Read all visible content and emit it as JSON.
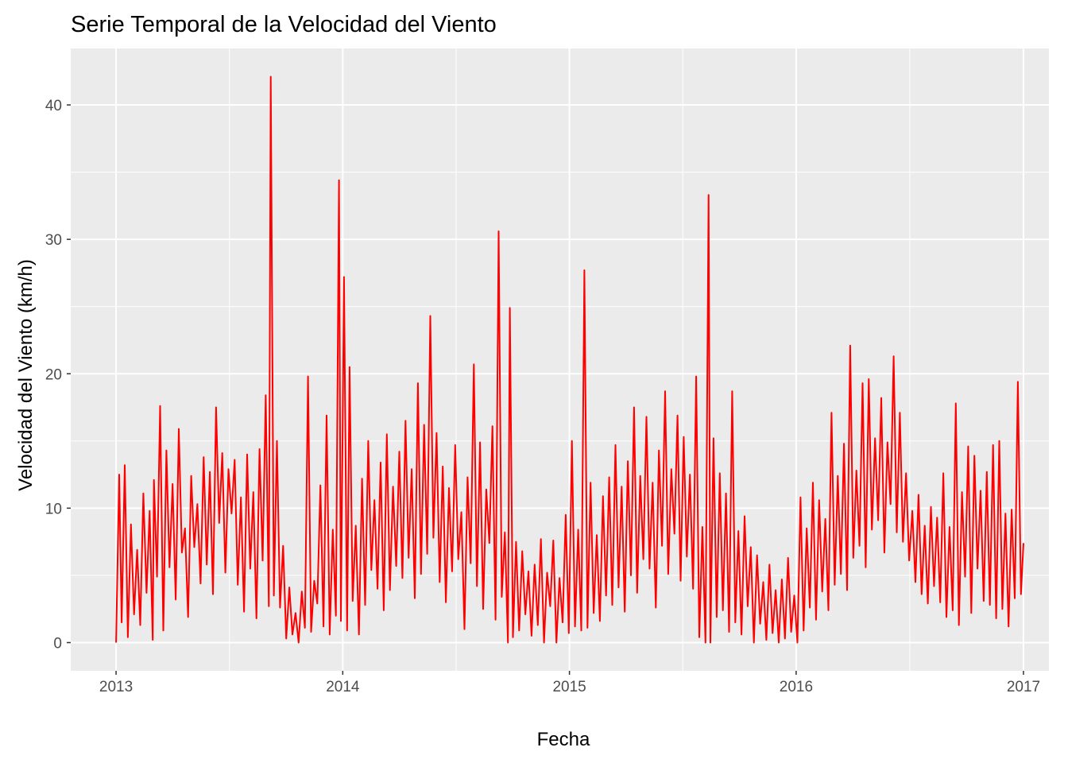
{
  "chart_data": {
    "type": "line",
    "title": "Serie Temporal de la Velocidad del Viento",
    "xlabel": "Fecha",
    "ylabel": "Velocidad del Viento (km/h)",
    "x_ticks": [
      "2013",
      "2014",
      "2015",
      "2016",
      "2017"
    ],
    "y_ticks": [
      "0",
      "10",
      "20",
      "30",
      "40"
    ],
    "xlim": [
      "2012-10-20",
      "2017-02-11"
    ],
    "ylim": [
      -2.1,
      44.2
    ],
    "grid": true,
    "legend": "none",
    "series": [
      {
        "color": "#ff0000",
        "x": [
          "2013-01-01",
          "2013-01-06",
          "2013-01-10",
          "2013-01-15",
          "2013-01-20",
          "2013-01-25",
          "2013-01-30",
          "2013-02-04",
          "2013-02-09",
          "2013-02-14",
          "2013-02-19",
          "2013-02-24",
          "2013-03-01",
          "2013-03-03",
          "2013-03-08",
          "2013-03-13",
          "2013-03-18",
          "2013-03-23",
          "2013-03-28",
          "2013-04-02",
          "2013-04-07",
          "2013-04-12",
          "2013-04-17",
          "2013-04-22",
          "2013-04-27",
          "2013-05-02",
          "2013-05-07",
          "2013-05-12",
          "2013-05-17",
          "2013-05-22",
          "2013-05-27",
          "2013-06-01",
          "2013-06-06",
          "2013-06-11",
          "2013-06-16",
          "2013-06-21",
          "2013-06-26",
          "2013-07-01",
          "2013-07-06",
          "2013-07-11",
          "2013-07-16",
          "2013-07-21",
          "2013-07-26",
          "2013-07-31",
          "2013-08-05",
          "2013-08-10",
          "2013-08-15",
          "2013-08-20",
          "2013-08-25",
          "2013-08-30",
          "2013-09-04",
          "2013-09-07",
          "2013-09-12",
          "2013-09-17",
          "2013-09-22",
          "2013-09-27",
          "2013-10-02",
          "2013-10-07",
          "2013-10-12",
          "2013-10-17",
          "2013-10-22",
          "2013-10-27",
          "2013-11-01",
          "2013-11-06",
          "2013-11-11",
          "2013-11-16",
          "2013-11-21",
          "2013-11-26",
          "2013-12-01",
          "2013-12-06",
          "2013-12-11",
          "2013-12-16",
          "2013-12-21",
          "2013-12-26",
          "2013-12-29",
          "2014-01-03",
          "2014-01-08",
          "2014-01-12",
          "2014-01-17",
          "2014-01-22",
          "2014-01-27",
          "2014-02-01",
          "2014-02-06",
          "2014-02-11",
          "2014-02-16",
          "2014-02-21",
          "2014-02-26",
          "2014-03-03",
          "2014-03-08",
          "2014-03-13",
          "2014-03-18",
          "2014-03-23",
          "2014-03-28",
          "2014-04-02",
          "2014-04-07",
          "2014-04-12",
          "2014-04-17",
          "2014-04-22",
          "2014-04-27",
          "2014-05-02",
          "2014-05-07",
          "2014-05-12",
          "2014-05-17",
          "2014-05-22",
          "2014-05-27",
          "2014-06-01",
          "2014-06-06",
          "2014-06-11",
          "2014-06-16",
          "2014-06-21",
          "2014-06-26",
          "2014-07-01",
          "2014-07-06",
          "2014-07-11",
          "2014-07-16",
          "2014-07-21",
          "2014-07-26",
          "2014-07-31",
          "2014-08-05",
          "2014-08-10",
          "2014-08-15",
          "2014-08-20",
          "2014-08-25",
          "2014-08-30",
          "2014-09-04",
          "2014-09-09",
          "2014-09-14",
          "2014-09-19",
          "2014-09-24",
          "2014-09-27",
          "2014-10-02",
          "2014-10-07",
          "2014-10-12",
          "2014-10-17",
          "2014-10-22",
          "2014-10-27",
          "2014-11-01",
          "2014-11-06",
          "2014-11-11",
          "2014-11-16",
          "2014-11-21",
          "2014-11-26",
          "2014-12-01",
          "2014-12-06",
          "2014-12-11",
          "2014-12-16",
          "2014-12-21",
          "2014-12-26",
          "2014-12-31",
          "2015-01-05",
          "2015-01-10",
          "2015-01-15",
          "2015-01-20",
          "2015-01-25",
          "2015-01-30",
          "2015-02-04",
          "2015-02-09",
          "2015-02-14",
          "2015-02-19",
          "2015-02-24",
          "2015-03-01",
          "2015-03-06",
          "2015-03-11",
          "2015-03-16",
          "2015-03-21",
          "2015-03-26",
          "2015-03-31",
          "2015-04-05",
          "2015-04-10",
          "2015-04-15",
          "2015-04-20",
          "2015-04-25",
          "2015-04-30",
          "2015-05-05",
          "2015-05-10",
          "2015-05-15",
          "2015-05-20",
          "2015-05-25",
          "2015-05-30",
          "2015-06-04",
          "2015-06-09",
          "2015-06-14",
          "2015-06-19",
          "2015-06-24",
          "2015-06-29",
          "2015-07-04",
          "2015-07-09",
          "2015-07-14",
          "2015-07-19",
          "2015-07-24",
          "2015-07-29",
          "2015-08-03",
          "2015-08-08",
          "2015-08-13",
          "2015-08-16",
          "2015-08-21",
          "2015-08-26",
          "2015-08-31",
          "2015-09-05",
          "2015-09-10",
          "2015-09-15",
          "2015-09-20",
          "2015-09-25",
          "2015-09-30",
          "2015-10-05",
          "2015-10-10",
          "2015-10-15",
          "2015-10-20",
          "2015-10-25",
          "2015-10-30",
          "2015-11-04",
          "2015-11-09",
          "2015-11-14",
          "2015-11-19",
          "2015-11-24",
          "2015-11-29",
          "2015-12-04",
          "2015-12-09",
          "2015-12-14",
          "2015-12-19",
          "2015-12-24",
          "2015-12-29",
          "2016-01-03",
          "2016-01-08",
          "2016-01-13",
          "2016-01-18",
          "2016-01-23",
          "2016-01-28",
          "2016-02-02",
          "2016-02-07",
          "2016-02-12",
          "2016-02-17",
          "2016-02-22",
          "2016-02-27",
          "2016-03-03",
          "2016-03-08",
          "2016-03-13",
          "2016-03-18",
          "2016-03-23",
          "2016-03-28",
          "2016-04-02",
          "2016-04-07",
          "2016-04-12",
          "2016-04-17",
          "2016-04-22",
          "2016-04-27",
          "2016-05-02",
          "2016-05-07",
          "2016-05-12",
          "2016-05-17",
          "2016-05-22",
          "2016-05-27",
          "2016-06-01",
          "2016-06-06",
          "2016-06-11",
          "2016-06-16",
          "2016-06-21",
          "2016-06-26",
          "2016-07-01",
          "2016-07-06",
          "2016-07-11",
          "2016-07-16",
          "2016-07-21",
          "2016-07-26",
          "2016-07-31",
          "2016-08-05",
          "2016-08-10",
          "2016-08-15",
          "2016-08-20",
          "2016-08-25",
          "2016-08-30",
          "2016-09-04",
          "2016-09-09",
          "2016-09-14",
          "2016-09-19",
          "2016-09-24",
          "2016-09-29",
          "2016-10-04",
          "2016-10-09",
          "2016-10-14",
          "2016-10-19",
          "2016-10-24",
          "2016-10-29",
          "2016-11-03",
          "2016-11-08",
          "2016-11-13",
          "2016-11-18",
          "2016-11-23",
          "2016-11-28",
          "2016-12-03",
          "2016-12-08",
          "2016-12-13",
          "2016-12-18",
          "2016-12-23",
          "2016-12-28",
          "2017-01-01"
        ],
        "y": [
          0.0,
          12.5,
          1.5,
          13.2,
          0.4,
          8.8,
          2.1,
          6.9,
          1.3,
          11.1,
          3.7,
          9.8,
          0.2,
          12.1,
          4.9,
          17.6,
          0.9,
          14.3,
          5.6,
          11.8,
          3.2,
          15.9,
          6.7,
          8.5,
          1.9,
          12.4,
          7.1,
          10.3,
          4.4,
          13.8,
          5.8,
          12.7,
          3.6,
          17.5,
          8.9,
          14.1,
          5.2,
          12.9,
          9.6,
          13.6,
          4.3,
          10.8,
          2.3,
          14.0,
          5.5,
          11.2,
          1.8,
          14.4,
          6.1,
          18.4,
          2.7,
          42.1,
          3.5,
          15.0,
          2.6,
          7.2,
          0.3,
          4.1,
          0.6,
          2.2,
          0.0,
          3.8,
          1.1,
          19.8,
          0.8,
          4.6,
          2.9,
          11.7,
          1.2,
          16.9,
          0.6,
          8.4,
          2.0,
          34.4,
          1.6,
          27.2,
          0.9,
          20.5,
          3.1,
          8.7,
          0.6,
          12.2,
          2.8,
          15.0,
          5.4,
          10.6,
          4.0,
          13.4,
          2.4,
          15.5,
          3.9,
          11.6,
          5.7,
          14.2,
          4.8,
          16.5,
          6.3,
          12.9,
          3.3,
          19.3,
          5.1,
          16.2,
          6.6,
          24.3,
          7.8,
          15.6,
          4.5,
          13.1,
          3.0,
          11.5,
          5.3,
          14.7,
          6.2,
          9.7,
          1.0,
          12.3,
          5.9,
          20.7,
          4.2,
          14.9,
          2.5,
          11.4,
          7.4,
          16.1,
          1.7,
          30.6,
          3.4,
          8.2,
          0.0,
          24.9,
          0.4,
          7.5,
          0.9,
          6.8,
          2.1,
          5.3,
          0.5,
          5.8,
          1.3,
          7.7,
          0.0,
          5.2,
          2.7,
          7.6,
          0.0,
          4.8,
          1.5,
          9.5,
          0.7,
          15.0,
          1.2,
          8.4,
          0.9,
          27.7,
          1.1,
          11.9,
          2.2,
          8.0,
          1.6,
          10.9,
          3.5,
          12.3,
          2.8,
          14.7,
          4.1,
          11.6,
          2.3,
          13.5,
          5.0,
          17.5,
          3.7,
          12.4,
          6.2,
          16.8,
          5.5,
          11.9,
          2.6,
          14.3,
          7.2,
          18.7,
          5.1,
          12.9,
          8.1,
          16.9,
          4.6,
          15.3,
          6.4,
          12.5,
          4.0,
          19.8,
          0.4,
          8.6,
          0.0,
          33.3,
          0.0,
          15.2,
          1.9,
          12.6,
          2.4,
          11.1,
          0.8,
          18.7,
          1.5,
          8.3,
          0.6,
          9.4,
          2.7,
          7.1,
          0.0,
          6.5,
          1.4,
          4.5,
          0.2,
          5.8,
          0.7,
          3.9,
          0.0,
          4.7,
          0.3,
          6.3,
          0.8,
          3.5,
          0.0,
          10.8,
          0.9,
          8.5,
          2.6,
          11.9,
          1.7,
          10.6,
          3.8,
          9.2,
          2.4,
          17.1,
          4.3,
          12.4,
          5.1,
          14.8,
          3.9,
          22.1,
          6.3,
          12.8,
          7.2,
          19.3,
          5.6,
          19.6,
          8.4,
          15.2,
          9.1,
          18.2,
          6.7,
          14.9,
          10.3,
          21.3,
          8.2,
          17.1,
          7.5,
          12.6,
          6.1,
          9.8,
          4.5,
          11.0,
          3.6,
          8.7,
          2.9,
          10.1,
          4.2,
          9.3,
          3.0,
          12.6,
          1.9,
          8.6,
          2.4,
          17.8,
          1.3,
          11.2,
          4.9,
          14.6,
          2.2,
          13.9,
          5.5,
          11.3,
          3.1,
          12.7,
          2.8,
          14.7,
          1.8,
          15.0,
          2.5,
          9.6,
          1.2,
          9.9,
          3.3,
          19.4,
          3.6,
          7.4
        ]
      }
    ]
  }
}
